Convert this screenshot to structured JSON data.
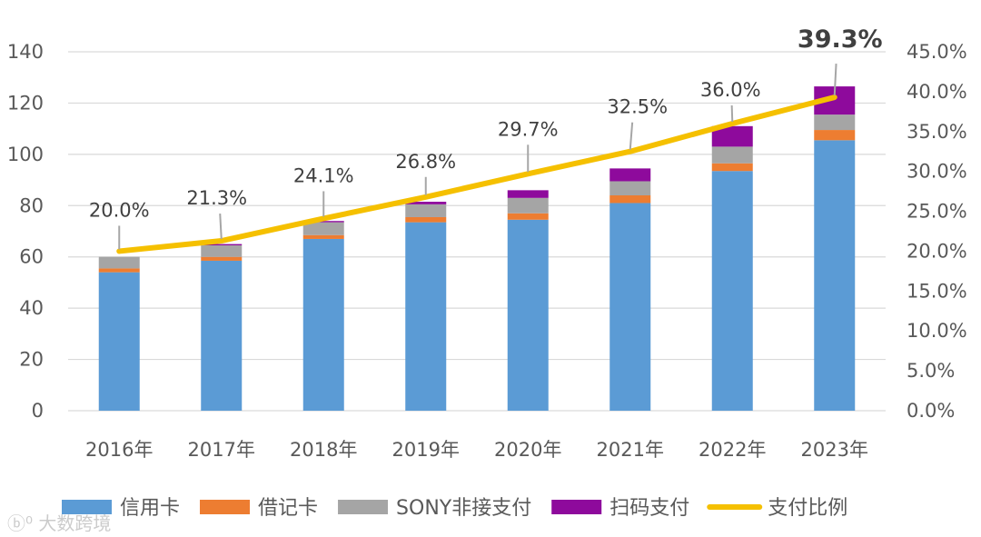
{
  "chart_data": {
    "type": "bar",
    "stacked": true,
    "categories": [
      "2016年",
      "2017年",
      "2018年",
      "2019年",
      "2020年",
      "2021年",
      "2022年",
      "2023年"
    ],
    "series": [
      {
        "name": "信用卡",
        "type": "bar",
        "axis": "left",
        "color": "#5B9BD5",
        "values": [
          54,
          58.5,
          67,
          73.5,
          74.5,
          81,
          93.5,
          105.5
        ]
      },
      {
        "name": "借记卡",
        "type": "bar",
        "axis": "left",
        "color": "#ED7D31",
        "values": [
          1.5,
          1.5,
          1.5,
          2,
          2.5,
          3,
          3,
          4
        ]
      },
      {
        "name": "SONY非接支付",
        "type": "bar",
        "axis": "left",
        "color": "#A5A5A5",
        "values": [
          4.5,
          4.5,
          5,
          5,
          6,
          5.5,
          6.5,
          6
        ]
      },
      {
        "name": "扫码支付",
        "type": "bar",
        "axis": "left",
        "color": "#8E0A9C",
        "values": [
          0,
          0.5,
          0.5,
          1,
          3,
          5,
          8,
          11
        ]
      },
      {
        "name": "支付比例",
        "type": "line",
        "axis": "right",
        "color": "#F5C000",
        "values": [
          20.0,
          21.3,
          24.1,
          26.8,
          29.7,
          32.5,
          36.0,
          39.3
        ],
        "labels": [
          "20.0%",
          "21.3%",
          "24.1%",
          "26.8%",
          "29.7%",
          "32.5%",
          "36.0%",
          "39.3%"
        ]
      }
    ],
    "y_left": {
      "min": 0,
      "max": 140,
      "ticks": [
        "0",
        "20",
        "40",
        "60",
        "80",
        "100",
        "120",
        "140"
      ]
    },
    "y_right": {
      "min": 0,
      "max": 45,
      "ticks": [
        "0.0%",
        "5.0%",
        "10.0%",
        "15.0%",
        "20.0%",
        "25.0%",
        "30.0%",
        "35.0%",
        "40.0%",
        "45.0%"
      ]
    },
    "grid": true,
    "legend_position": "bottom"
  },
  "watermark": "大数跨境"
}
